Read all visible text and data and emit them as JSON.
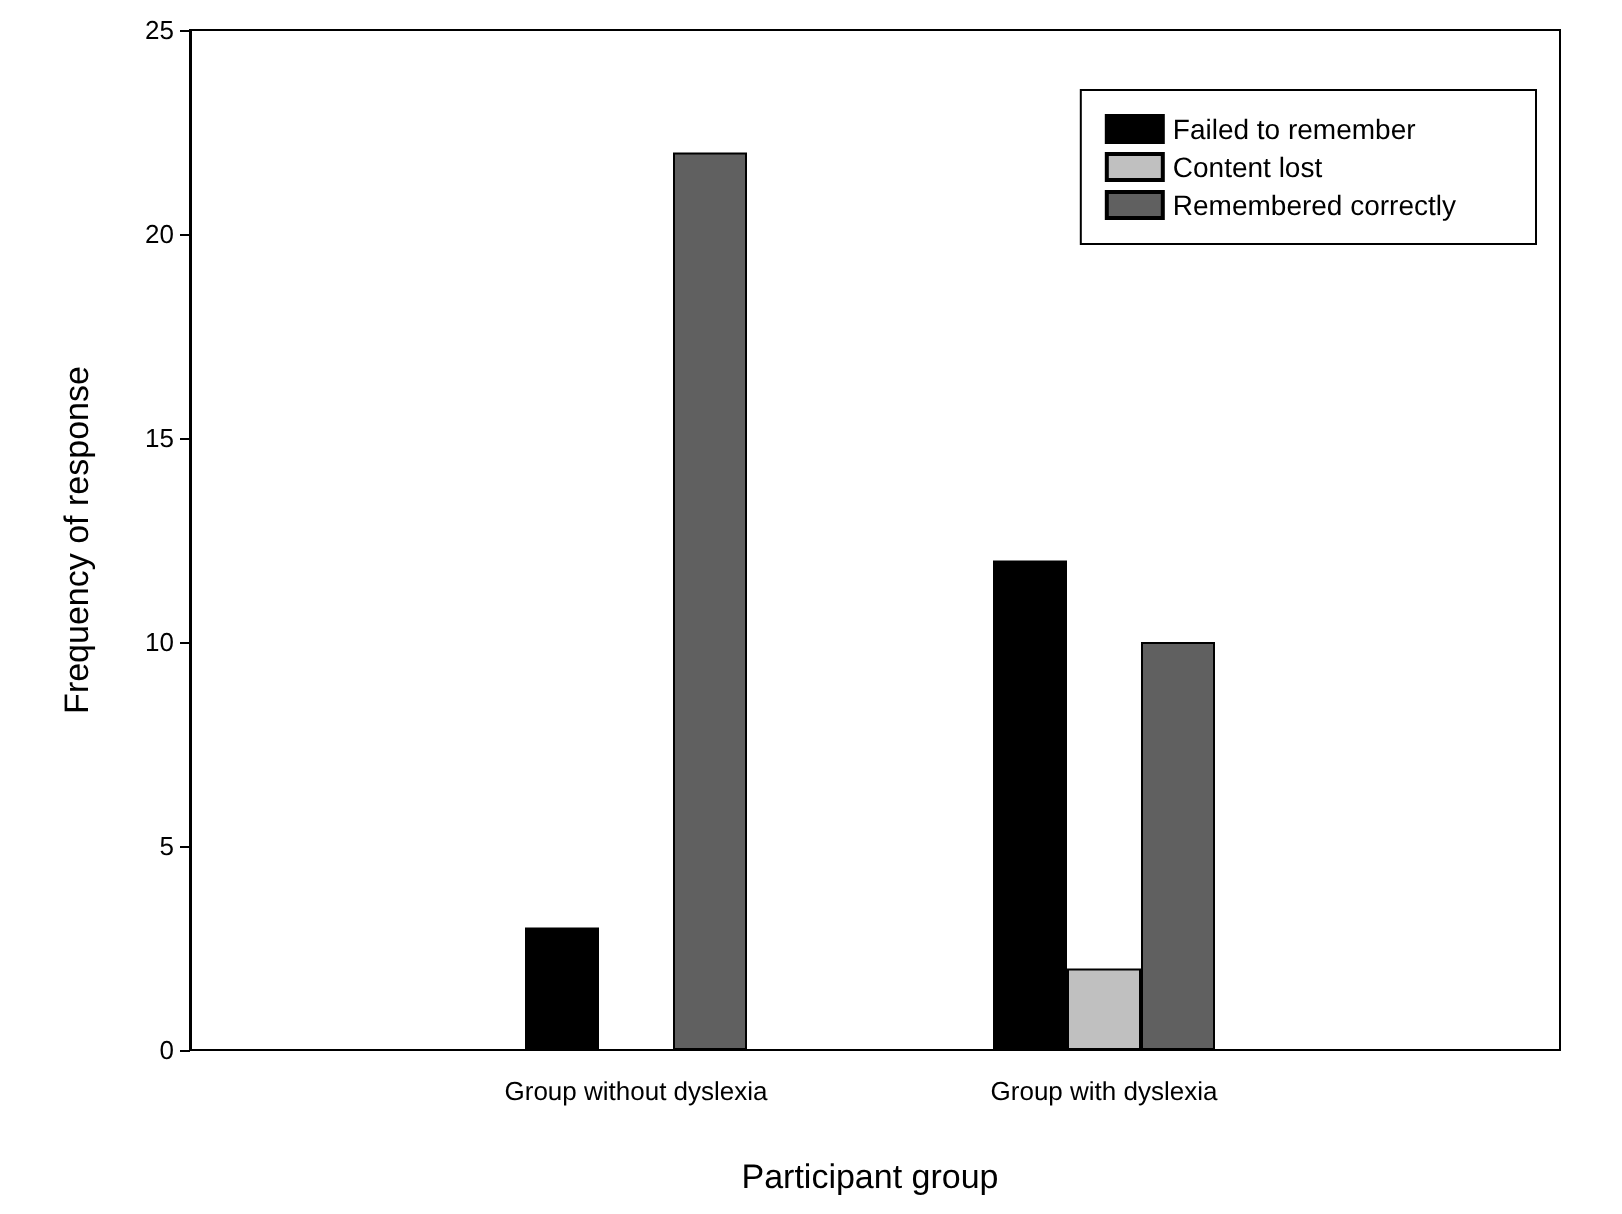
{
  "chart_data": {
    "type": "bar",
    "xlabel": "Participant group",
    "ylabel": "Frequency of response",
    "categories": [
      "Group without dyslexia",
      "Group with dyslexia"
    ],
    "series": [
      {
        "name": "Failed to remember",
        "color": "#000000",
        "values": [
          3,
          12
        ]
      },
      {
        "name": "Content lost",
        "color": "#c0c0c0",
        "values": [
          0,
          2
        ]
      },
      {
        "name": "Remembered correctly",
        "color": "#606060",
        "values": [
          22,
          10
        ]
      }
    ],
    "ylim": [
      0,
      25
    ],
    "yticks": [
      0,
      5,
      10,
      15,
      20,
      25
    ],
    "legend": "top right"
  }
}
